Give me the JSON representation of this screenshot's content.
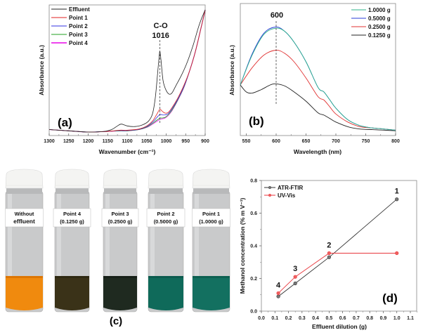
{
  "chart_data": [
    {
      "id": "a",
      "type": "line",
      "panel_label": "(a)",
      "xlabel": "Wavenumber (cm⁻¹)",
      "ylabel": "Absorbance (a.u.)",
      "xlim": [
        1300,
        900
      ],
      "x_reversed": true,
      "xticks": [
        1300,
        1250,
        1200,
        1150,
        1100,
        1050,
        1000,
        950,
        900
      ],
      "legend_position": "top-left",
      "annotation": {
        "label": "C-O",
        "value": "1016",
        "x": 1016
      },
      "series": [
        {
          "name": "Effluent",
          "color": "#222222",
          "x": [
            1300,
            1250,
            1200,
            1160,
            1140,
            1125,
            1115,
            1100,
            1080,
            1060,
            1045,
            1035,
            1028,
            1022,
            1018,
            1016,
            1013,
            1008,
            1000,
            992,
            985,
            975,
            960,
            945,
            930,
            915,
            900
          ],
          "y": [
            0.02,
            0.01,
            0.0,
            0.005,
            0.02,
            0.05,
            0.065,
            0.05,
            0.045,
            0.06,
            0.09,
            0.15,
            0.28,
            0.48,
            0.62,
            0.66,
            0.58,
            0.42,
            0.34,
            0.31,
            0.32,
            0.38,
            0.47,
            0.58,
            0.72,
            0.88,
            1.0
          ]
        },
        {
          "name": "Point 1",
          "color": "#e02020",
          "x": [
            1300,
            1250,
            1200,
            1150,
            1120,
            1100,
            1070,
            1050,
            1035,
            1025,
            1018,
            1015,
            1010,
            1003,
            995,
            985,
            970,
            955,
            940,
            925,
            910,
            900
          ],
          "y": [
            0.02,
            0.01,
            0.0,
            0.005,
            0.015,
            0.015,
            0.025,
            0.05,
            0.09,
            0.14,
            0.18,
            0.185,
            0.17,
            0.155,
            0.16,
            0.2,
            0.28,
            0.38,
            0.5,
            0.66,
            0.86,
            1.0
          ]
        },
        {
          "name": "Point 2",
          "color": "#3030e0",
          "x": [
            1300,
            1250,
            1200,
            1150,
            1120,
            1100,
            1070,
            1050,
            1035,
            1025,
            1018,
            1015,
            1010,
            1003,
            995,
            985,
            970,
            955,
            940,
            925,
            910,
            900
          ],
          "y": [
            0.02,
            0.01,
            0.0,
            0.005,
            0.012,
            0.012,
            0.022,
            0.045,
            0.08,
            0.115,
            0.14,
            0.145,
            0.14,
            0.14,
            0.15,
            0.19,
            0.27,
            0.37,
            0.5,
            0.66,
            0.86,
            1.0
          ]
        },
        {
          "name": "Point 3",
          "color": "#20a020",
          "x": [
            1300,
            1250,
            1200,
            1150,
            1120,
            1100,
            1070,
            1050,
            1035,
            1025,
            1018,
            1015,
            1010,
            1003,
            995,
            985,
            970,
            955,
            940,
            925,
            910,
            900
          ],
          "y": [
            0.02,
            0.01,
            0.0,
            0.005,
            0.01,
            0.01,
            0.02,
            0.04,
            0.07,
            0.095,
            0.11,
            0.115,
            0.115,
            0.12,
            0.14,
            0.18,
            0.265,
            0.365,
            0.5,
            0.66,
            0.86,
            1.0
          ]
        },
        {
          "name": "Point 4",
          "color": "#ee44ee",
          "x": [
            1300,
            1250,
            1200,
            1150,
            1120,
            1100,
            1070,
            1050,
            1035,
            1025,
            1018,
            1015,
            1010,
            1003,
            995,
            985,
            970,
            955,
            940,
            925,
            910,
            900
          ],
          "y": [
            0.02,
            0.01,
            0.0,
            0.005,
            0.01,
            0.01,
            0.02,
            0.038,
            0.065,
            0.085,
            0.1,
            0.105,
            0.108,
            0.115,
            0.135,
            0.175,
            0.262,
            0.362,
            0.5,
            0.66,
            0.86,
            1.0
          ]
        }
      ]
    },
    {
      "id": "b",
      "type": "line",
      "panel_label": "(b)",
      "xlabel": "Wavelength (nm)",
      "ylabel": "Absorbance (a.u.)",
      "xlim": [
        540,
        800
      ],
      "xticks": [
        550,
        600,
        650,
        700,
        750,
        800
      ],
      "legend_position": "top-right",
      "annotation": {
        "value": "600",
        "x": 600
      },
      "series": [
        {
          "name": "1.0000 g",
          "color": "#2db38a",
          "x": [
            540,
            560,
            580,
            600,
            615,
            630,
            650,
            670,
            680,
            690,
            700,
            720,
            740,
            760,
            780,
            800
          ],
          "y": [
            0.4,
            0.66,
            0.84,
            0.89,
            0.86,
            0.77,
            0.6,
            0.38,
            0.34,
            0.27,
            0.2,
            0.1,
            0.05,
            0.03,
            0.02,
            0.01
          ]
        },
        {
          "name": "0.5000 g",
          "color": "#2a3cd8",
          "x": [
            540,
            560,
            580,
            600,
            615,
            630,
            650,
            670,
            680,
            690,
            700,
            720,
            740,
            760,
            780,
            800
          ],
          "y": [
            0.4,
            0.67,
            0.85,
            0.9,
            0.86,
            0.77,
            0.6,
            0.38,
            0.34,
            0.27,
            0.2,
            0.1,
            0.05,
            0.03,
            0.02,
            0.01
          ]
        },
        {
          "name": "0.2500 g",
          "color": "#e03030",
          "x": [
            540,
            560,
            580,
            600,
            615,
            630,
            650,
            670,
            680,
            690,
            700,
            720,
            740,
            760,
            780,
            800
          ],
          "y": [
            0.4,
            0.55,
            0.66,
            0.7,
            0.67,
            0.6,
            0.46,
            0.3,
            0.27,
            0.21,
            0.15,
            0.08,
            0.04,
            0.03,
            0.02,
            0.01
          ]
        },
        {
          "name": "0.1250 g",
          "color": "#222222",
          "x": [
            540,
            550,
            560,
            575,
            590,
            600,
            615,
            630,
            650,
            670,
            680,
            690,
            700,
            720,
            740,
            760,
            780,
            800
          ],
          "y": [
            0.4,
            0.34,
            0.33,
            0.36,
            0.4,
            0.41,
            0.39,
            0.34,
            0.26,
            0.16,
            0.14,
            0.11,
            0.08,
            0.04,
            0.02,
            0.015,
            0.01,
            0.005
          ]
        }
      ]
    },
    {
      "id": "d",
      "type": "line",
      "panel_label": "(d)",
      "xlabel": "Effluent dilution (g)",
      "ylabel": "Methanol concentration (% m V⁻¹)",
      "xlim": [
        0.0,
        1.1
      ],
      "ylim": [
        0.0,
        0.8
      ],
      "xticks": [
        0.0,
        0.1,
        0.2,
        0.3,
        0.4,
        0.5,
        0.6,
        0.7,
        0.8,
        0.9,
        1.0,
        1.1
      ],
      "yticks": [
        0.0,
        0.2,
        0.4,
        0.6,
        0.8
      ],
      "legend_position": "top-left",
      "point_labels": [
        {
          "text": "4",
          "x": 0.125,
          "y": 0.11
        },
        {
          "text": "3",
          "x": 0.25,
          "y": 0.21
        },
        {
          "text": "2",
          "x": 0.5,
          "y": 0.355
        },
        {
          "text": "1",
          "x": 1.0,
          "y": 0.685
        }
      ],
      "series": [
        {
          "name": "ATR-FTIR",
          "color": "#333333",
          "marker_color": "#777777",
          "x": [
            0.125,
            0.25,
            0.5,
            1.0
          ],
          "y": [
            0.09,
            0.17,
            0.33,
            0.685
          ]
        },
        {
          "name": "UV-Vis",
          "color": "#e8363c",
          "marker_color": "#f06060",
          "x": [
            0.125,
            0.25,
            0.5,
            1.0
          ],
          "y": [
            0.11,
            0.21,
            0.355,
            0.355
          ]
        }
      ]
    }
  ],
  "photo": {
    "panel_label": "(c)",
    "vials": [
      {
        "line1": "Without",
        "line2": "effluent",
        "liquid": "#f08a0e",
        "liquid_dark": "#d46e00"
      },
      {
        "line1": "Point 4",
        "line2": "(0.1250 g)",
        "liquid": "#3a3218",
        "liquid_dark": "#2a2510"
      },
      {
        "line1": "Point 3",
        "line2": "(0.2500 g)",
        "liquid": "#1f2a20",
        "liquid_dark": "#141c16"
      },
      {
        "line1": "Point 2",
        "line2": "(0.5000 g)",
        "liquid": "#0f6a5a",
        "liquid_dark": "#0a5548"
      },
      {
        "line1": "Point 1",
        "line2": "(1.0000 g)",
        "liquid": "#137060",
        "liquid_dark": "#0c5a4c"
      }
    ]
  }
}
